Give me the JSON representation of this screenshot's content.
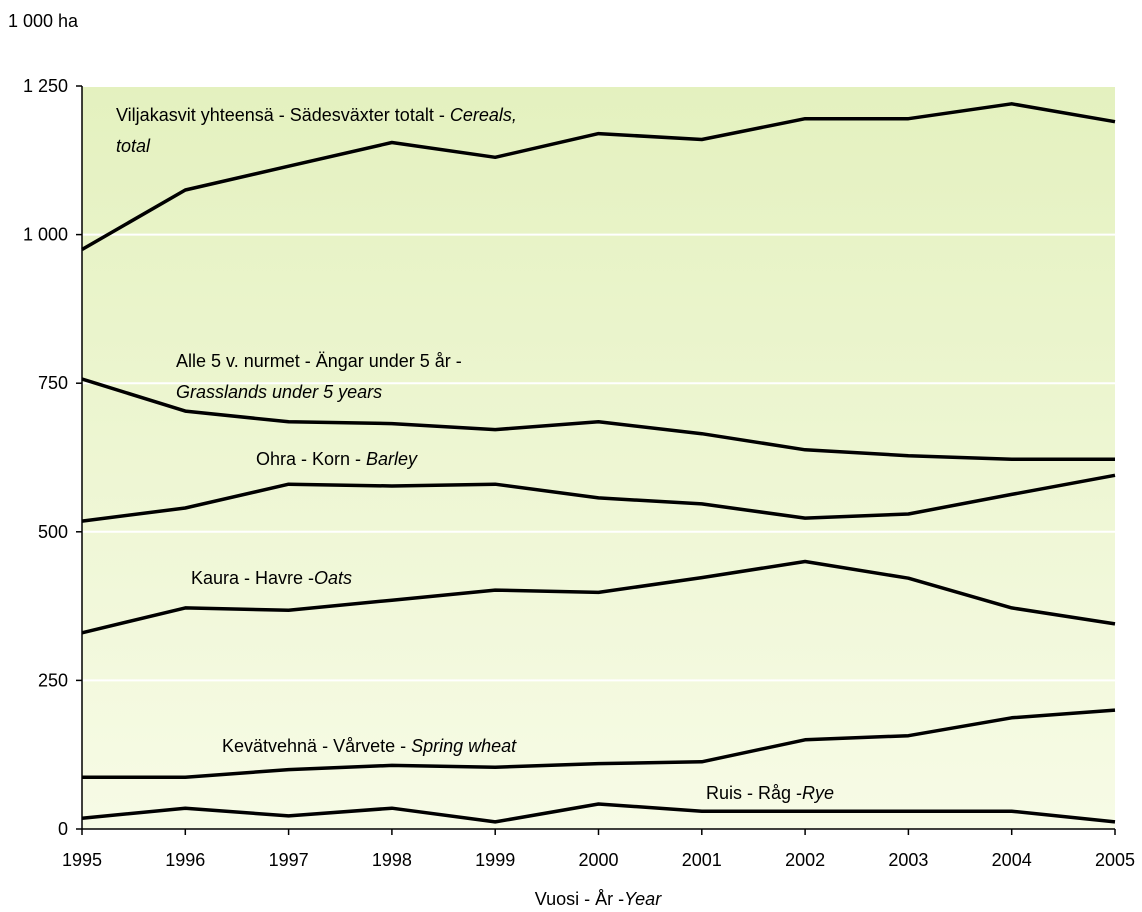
{
  "chart_data": {
    "type": "line",
    "title": "",
    "ylabel": "1 000 ha",
    "xlabel": {
      "main": "Vuosi - År -",
      "italic": "Year"
    },
    "x": [
      1995,
      1996,
      1997,
      1998,
      1999,
      2000,
      2001,
      2002,
      2003,
      2004,
      2005
    ],
    "xticks": [
      "1995",
      "1996",
      "1997",
      "1998",
      "1999",
      "2000",
      "2001",
      "2002",
      "2003",
      "2004",
      "2005"
    ],
    "ylim": [
      0,
      1250
    ],
    "yticks": [
      {
        "value": 0,
        "label": "0"
      },
      {
        "value": 250,
        "label": "250"
      },
      {
        "value": 500,
        "label": "500"
      },
      {
        "value": 750,
        "label": "750"
      },
      {
        "value": 1000,
        "label": "1 000"
      },
      {
        "value": 1250,
        "label": "1 250"
      }
    ],
    "grid": true,
    "background": {
      "top": "#e4f1bf",
      "bottom": "#f7fbe6",
      "grid": "#ffffff"
    },
    "line_color": "#000000",
    "series": [
      {
        "name": "Viljakasvit yhteensä - Sädesväxter totalt - Cereals, total",
        "label_lines": [
          {
            "plain": "Viljakasvit yhteensä - Sädesväxter totalt - ",
            "italic": "Cereals,"
          },
          {
            "plain": "",
            "italic": "total"
          }
        ],
        "values": [
          975,
          1075,
          1115,
          1155,
          1130,
          1170,
          1160,
          1195,
          1195,
          1220,
          1190
        ]
      },
      {
        "name": "Alle 5 v. nurmet - Ängar under 5 år - Grasslands under 5 years",
        "label_lines": [
          {
            "plain": "Alle 5 v. nurmet - Ängar under 5 år -",
            "italic": ""
          },
          {
            "plain": "",
            "italic": "Grasslands under 5 years"
          }
        ],
        "values": [
          757,
          703,
          685,
          682,
          672,
          685,
          665,
          638,
          628,
          622,
          622
        ]
      },
      {
        "name": "Ohra - Korn - Barley",
        "label_lines": [
          {
            "plain": "Ohra - Korn - ",
            "italic": "Barley"
          }
        ],
        "values": [
          518,
          540,
          580,
          577,
          580,
          557,
          547,
          523,
          530,
          563,
          595
        ]
      },
      {
        "name": "Kaura - Havre - Oats",
        "label_lines": [
          {
            "plain": "Kaura - Havre -",
            "italic": "Oats"
          }
        ],
        "values": [
          330,
          372,
          368,
          385,
          402,
          398,
          423,
          450,
          422,
          372,
          345
        ]
      },
      {
        "name": "Kevätvehnä - Vårvete - Spring wheat",
        "label_lines": [
          {
            "plain": "Kevätvehnä - Vårvete - ",
            "italic": "Spring wheat"
          }
        ],
        "values": [
          87,
          87,
          100,
          107,
          104,
          110,
          113,
          150,
          157,
          187,
          200
        ]
      },
      {
        "name": "Ruis - Råg - Rye",
        "label_lines": [
          {
            "plain": "Ruis - Råg -",
            "italic": "Rye"
          }
        ],
        "values": [
          18,
          35,
          22,
          35,
          12,
          42,
          30,
          30,
          30,
          30,
          12
        ]
      }
    ]
  }
}
